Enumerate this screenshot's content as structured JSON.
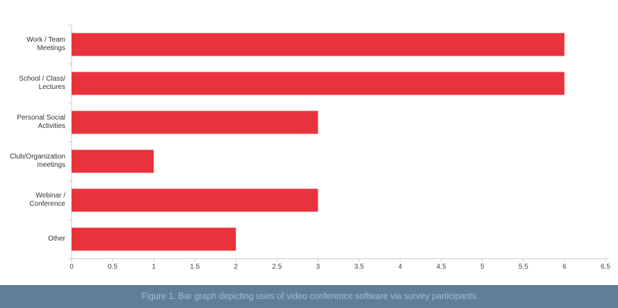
{
  "chart_data": {
    "type": "bar",
    "orientation": "horizontal",
    "categories": [
      "Work / Team Meetings",
      "School / Class/ Lectures",
      "Personal Social Activities",
      "Club/Organization meetings",
      "Webinar / Conference",
      "Other"
    ],
    "values": [
      6,
      6,
      3,
      1,
      3,
      2
    ],
    "color": "#e8333c",
    "xlim": [
      0,
      6.5
    ],
    "xticks": [
      0,
      0.5,
      1,
      1.5,
      2,
      2.5,
      3,
      3.5,
      4,
      4.5,
      5,
      5.5,
      6,
      6.5
    ],
    "grid": false
  },
  "caption": "Figure 1. Bar graph depicting uses of video conference software via survey participants"
}
